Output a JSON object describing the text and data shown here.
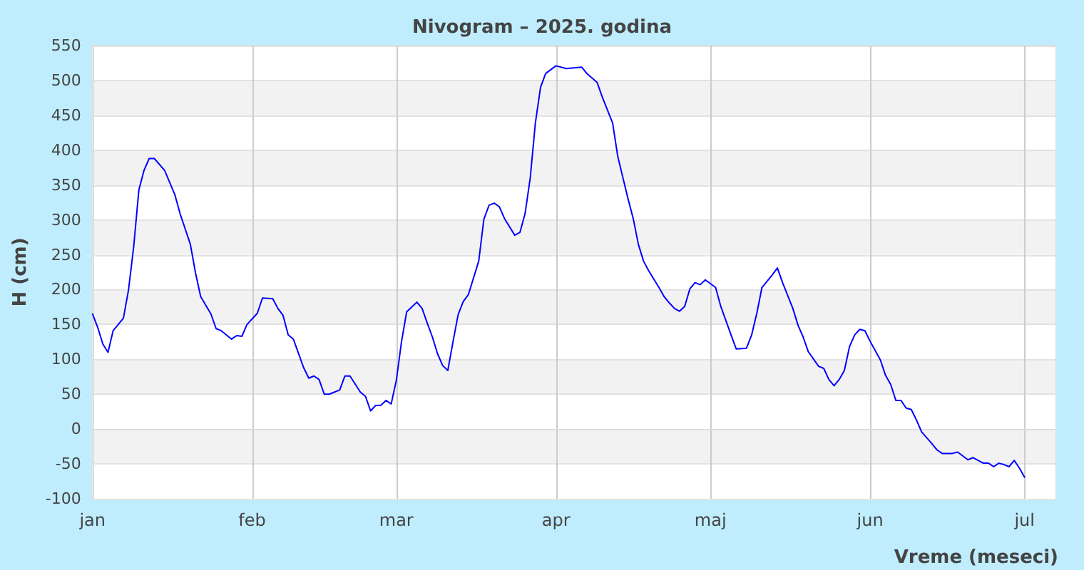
{
  "chart_data": {
    "type": "line",
    "title": "Nivogram – 2025. godina",
    "xlabel": "Vreme (meseci)",
    "ylabel": "H (cm)",
    "x": [
      "2025-01-01",
      "2025-01-02",
      "2025-01-03",
      "2025-01-04",
      "2025-01-05",
      "2025-01-07",
      "2025-01-08",
      "2025-01-09",
      "2025-01-10",
      "2025-01-11",
      "2025-01-12",
      "2025-01-13",
      "2025-01-15",
      "2025-01-17",
      "2025-01-18",
      "2025-01-20",
      "2025-01-21",
      "2025-01-22",
      "2025-01-24",
      "2025-01-25",
      "2025-01-26",
      "2025-01-28",
      "2025-01-29",
      "2025-01-30",
      "2025-01-31",
      "2025-02-02",
      "2025-02-03",
      "2025-02-05",
      "2025-02-06",
      "2025-02-07",
      "2025-02-08",
      "2025-02-09",
      "2025-02-11",
      "2025-02-12",
      "2025-02-13",
      "2025-02-14",
      "2025-02-15",
      "2025-02-16",
      "2025-02-17",
      "2025-02-18",
      "2025-02-19",
      "2025-02-20",
      "2025-02-22",
      "2025-02-23",
      "2025-02-24",
      "2025-02-25",
      "2025-02-26",
      "2025-02-27",
      "2025-02-28",
      "2025-03-01",
      "2025-03-02",
      "2025-03-03",
      "2025-03-05",
      "2025-03-06",
      "2025-03-07",
      "2025-03-08",
      "2025-03-09",
      "2025-03-10",
      "2025-03-11",
      "2025-03-12",
      "2025-03-13",
      "2025-03-14",
      "2025-03-15",
      "2025-03-17",
      "2025-03-18",
      "2025-03-19",
      "2025-03-20",
      "2025-03-21",
      "2025-03-22",
      "2025-03-24",
      "2025-03-25",
      "2025-03-26",
      "2025-03-27",
      "2025-03-28",
      "2025-03-29",
      "2025-03-30",
      "2025-04-01",
      "2025-04-03",
      "2025-04-06",
      "2025-04-07",
      "2025-04-09",
      "2025-04-10",
      "2025-04-12",
      "2025-04-13",
      "2025-04-15",
      "2025-04-16",
      "2025-04-17",
      "2025-04-18",
      "2025-04-19",
      "2025-04-21",
      "2025-04-22",
      "2025-04-23",
      "2025-04-24",
      "2025-04-25",
      "2025-04-26",
      "2025-04-27",
      "2025-04-28",
      "2025-04-29",
      "2025-04-30",
      "2025-05-02",
      "2025-05-03",
      "2025-05-05",
      "2025-05-06",
      "2025-05-08",
      "2025-05-09",
      "2025-05-10",
      "2025-05-11",
      "2025-05-13",
      "2025-05-14",
      "2025-05-15",
      "2025-05-17",
      "2025-05-18",
      "2025-05-19",
      "2025-05-20",
      "2025-05-22",
      "2025-05-23",
      "2025-05-24",
      "2025-05-25",
      "2025-05-26",
      "2025-05-27",
      "2025-05-28",
      "2025-05-29",
      "2025-05-30",
      "2025-05-31",
      "2025-06-01",
      "2025-06-03",
      "2025-06-04",
      "2025-06-05",
      "2025-06-06",
      "2025-06-07",
      "2025-06-08",
      "2025-06-09",
      "2025-06-10",
      "2025-06-11",
      "2025-06-13",
      "2025-06-14",
      "2025-06-15",
      "2025-06-17",
      "2025-06-18",
      "2025-06-20",
      "2025-06-21",
      "2025-06-23",
      "2025-06-24",
      "2025-06-25",
      "2025-06-26",
      "2025-06-27",
      "2025-06-28",
      "2025-06-29",
      "2025-06-30",
      "2025-07-01"
    ],
    "series": [
      {
        "color": "#0000ff",
        "values": [
          165,
          146,
          122,
          110,
          141,
          159,
          200,
          262,
          343,
          371,
          388,
          388,
          371,
          336,
          309,
          265,
          224,
          190,
          165,
          144,
          141,
          129,
          134,
          133,
          150,
          166,
          188,
          187,
          173,
          163,
          135,
          129,
          88,
          73,
          76,
          71,
          50,
          50,
          53,
          56,
          76,
          76,
          53,
          47,
          26,
          34,
          34,
          41,
          36,
          70,
          125,
          168,
          182,
          173,
          152,
          132,
          108,
          91,
          84,
          125,
          164,
          183,
          193,
          241,
          301,
          321,
          324,
          319,
          302,
          278,
          282,
          309,
          360,
          439,
          490,
          510,
          521,
          517,
          519,
          510,
          497,
          476,
          439,
          391,
          330,
          302,
          265,
          241,
          227,
          203,
          190,
          181,
          173,
          169,
          176,
          201,
          210,
          207,
          214,
          203,
          176,
          135,
          115,
          116,
          135,
          166,
          203,
          221,
          231,
          210,
          173,
          149,
          132,
          111,
          90,
          87,
          71,
          62,
          71,
          84,
          118,
          135,
          143,
          141,
          126,
          99,
          77,
          64,
          41,
          41,
          30,
          28,
          13,
          -4,
          -21,
          -30,
          -35,
          -35,
          -33,
          -44,
          -41,
          -49,
          -49,
          -54,
          -49,
          -51,
          -54,
          -45,
          -56,
          -69
        ]
      }
    ],
    "xlim": [
      "2025-01-01",
      "2025-07-07"
    ],
    "xticks": [
      {
        "value": "2025-01-01",
        "label": "jan"
      },
      {
        "value": "2025-02-01",
        "label": "feb"
      },
      {
        "value": "2025-03-01",
        "label": "mar"
      },
      {
        "value": "2025-04-01",
        "label": "apr"
      },
      {
        "value": "2025-05-01",
        "label": "maj"
      },
      {
        "value": "2025-06-01",
        "label": "jun"
      },
      {
        "value": "2025-07-01",
        "label": "jul"
      }
    ],
    "ylim": [
      -100,
      550
    ],
    "yticks": [
      -100,
      -50,
      0,
      50,
      100,
      150,
      200,
      250,
      300,
      350,
      400,
      450,
      500,
      550
    ],
    "grid": true,
    "marker": "none",
    "line_style": "solid"
  }
}
